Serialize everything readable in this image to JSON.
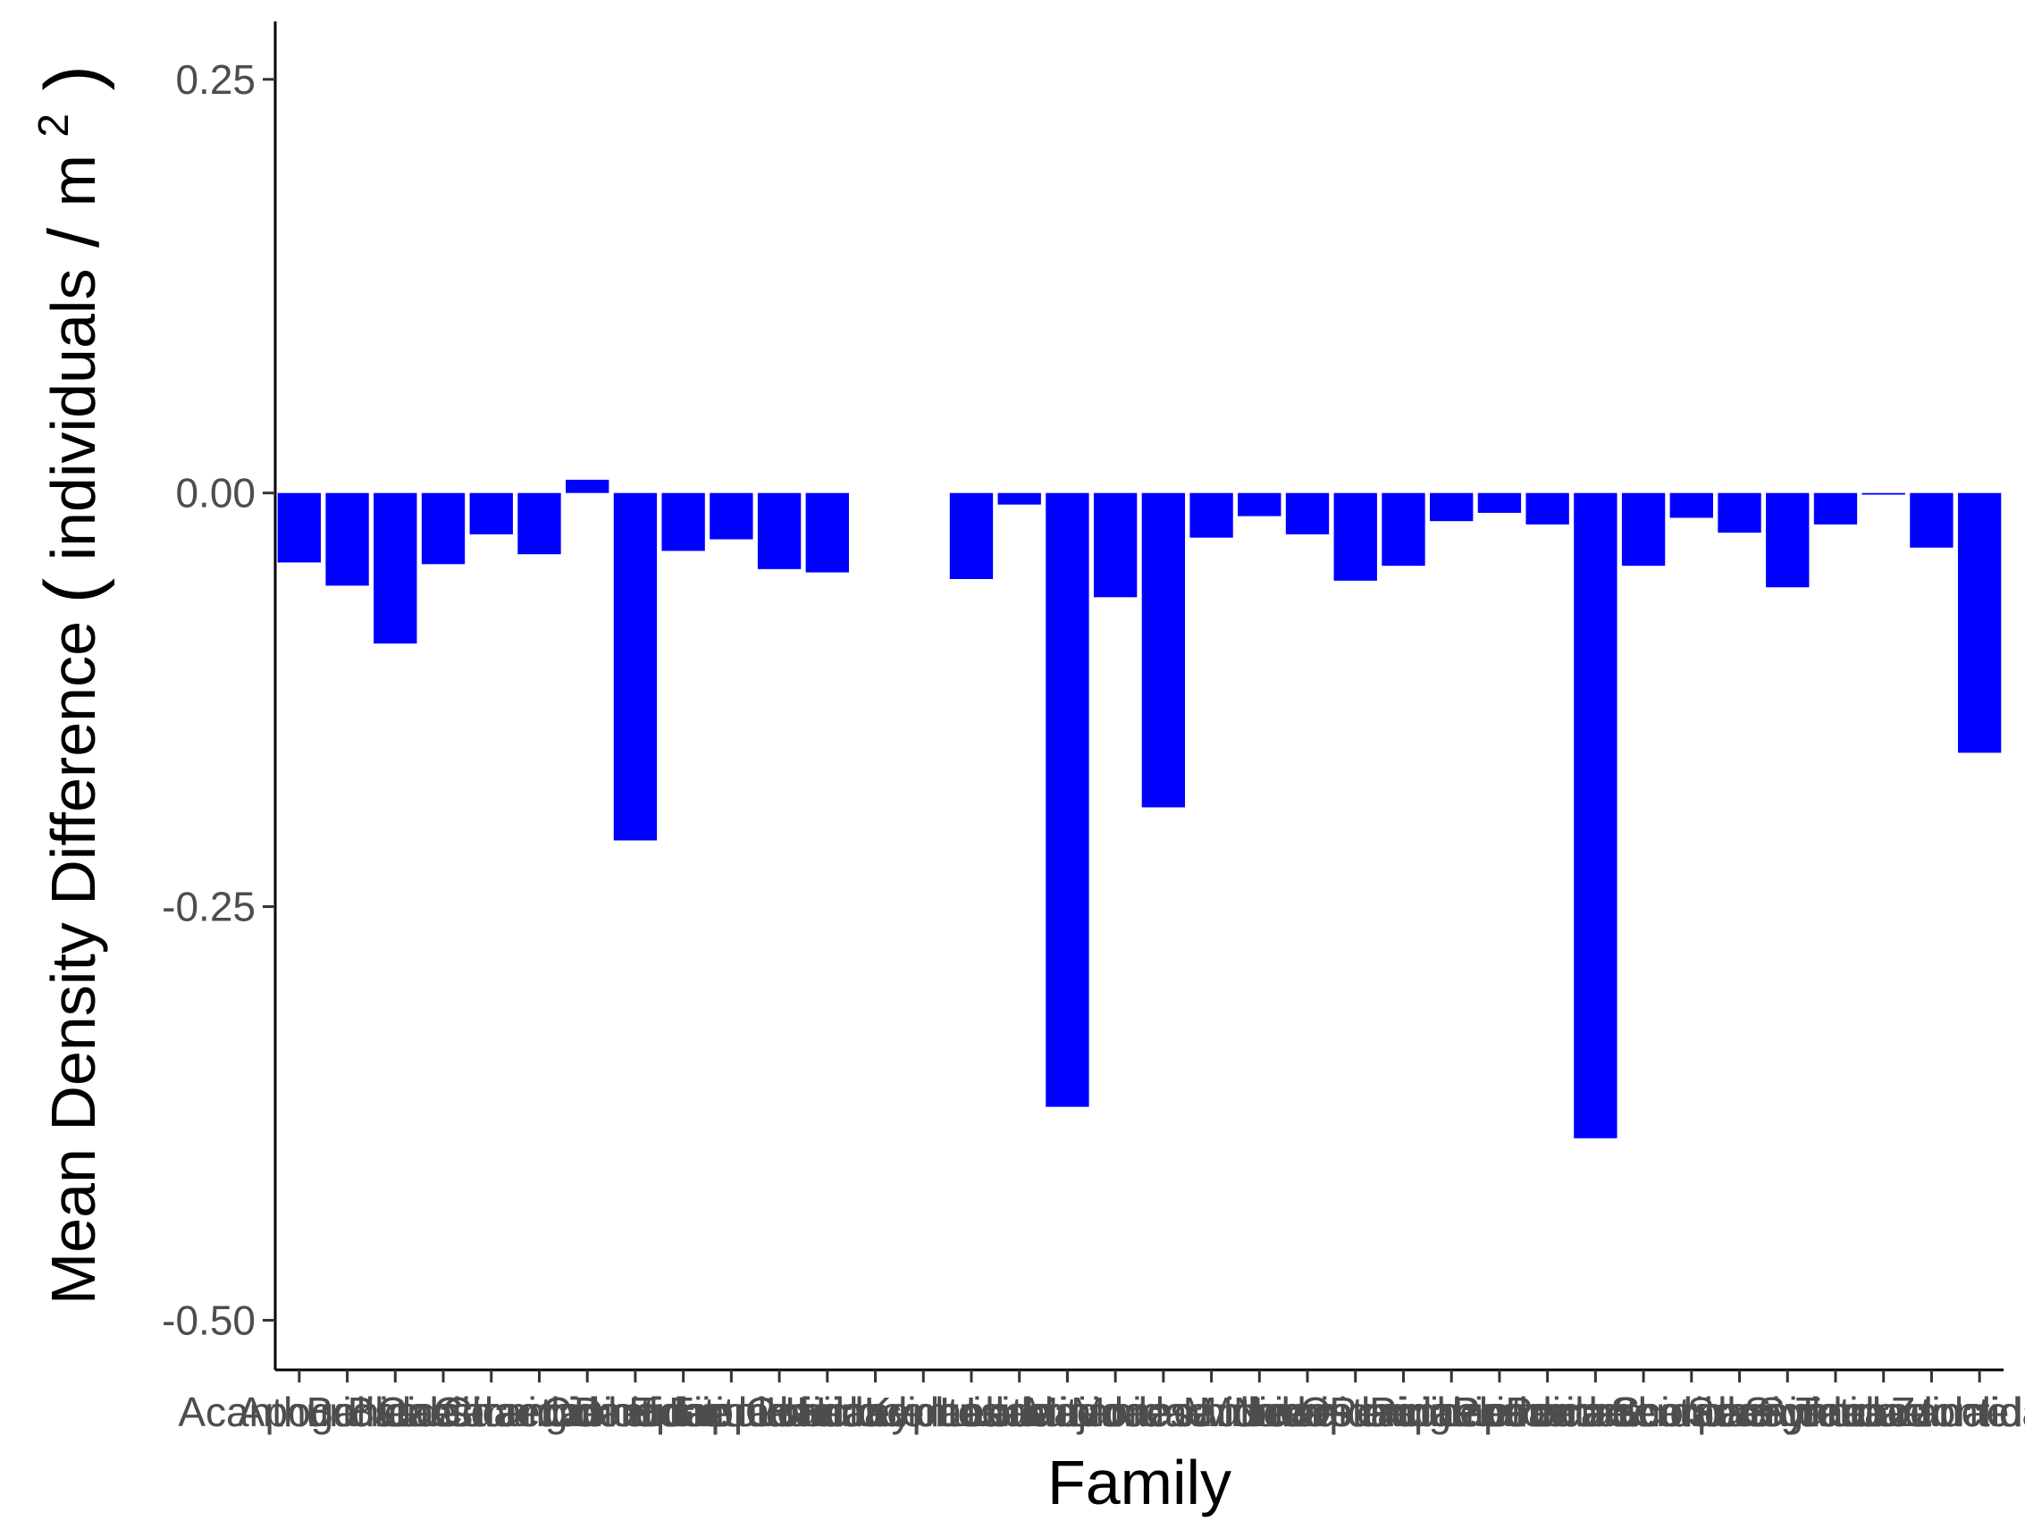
{
  "chart_data": {
    "type": "bar",
    "xlabel": "Family",
    "ylabel": {
      "main": "Mean Density Difference",
      "paren_open": "(",
      "unit_num": "individuals",
      "slash": "/",
      "unit_den": "m",
      "exponent": "2",
      "paren_close": ")"
    },
    "ylim": [
      -0.53,
      0.285
    ],
    "yticks": [
      {
        "value": 0.25,
        "label": "0.25"
      },
      {
        "value": 0.0,
        "label": "0.00"
      },
      {
        "value": -0.25,
        "label": "-0.25"
      },
      {
        "value": -0.5,
        "label": "-0.50"
      }
    ],
    "grid": false,
    "legend": "none",
    "bar_color": "#0000ff",
    "categories": [
      "Acanthuridae",
      "Apogonidae",
      "Balistidae",
      "Blenniidae",
      "Caesionidae",
      "Carangidae",
      "Chaetodontidae",
      "Cirrhitidae",
      "Diodontidae",
      "Ephippidae",
      "Fistulariidae",
      "Gobiidae",
      "Haemulidae",
      "Holocentridae",
      "Kyphosidae",
      "Labridae",
      "Lethrinidae",
      "Lutjanidae",
      "Microdesmidae",
      "Monacanthidae",
      "Mullidae",
      "Muraenidae",
      "Nemipteridae",
      "Ostraciidae",
      "Pempheridae",
      "Pinguipedidae",
      "Plotosidae",
      "Pomacanthidae",
      "Pomacentridae",
      "Scaridae",
      "Scorpaenidae",
      "Serranidae",
      "Siganidae",
      "Synodontidae",
      "Tetraodontidae",
      "Zanclidae"
    ],
    "values": [
      -0.042,
      -0.056,
      -0.091,
      -0.043,
      -0.025,
      -0.037,
      0.008,
      -0.21,
      -0.035,
      -0.028,
      -0.046,
      -0.048,
      null,
      null,
      -0.052,
      -0.007,
      -0.371,
      -0.063,
      -0.19,
      -0.027,
      -0.014,
      -0.025,
      -0.053,
      -0.044,
      -0.017,
      -0.012,
      -0.019,
      -0.39,
      -0.044,
      -0.015,
      -0.024,
      -0.057,
      -0.019,
      -0.001,
      -0.033,
      -0.157
    ]
  }
}
